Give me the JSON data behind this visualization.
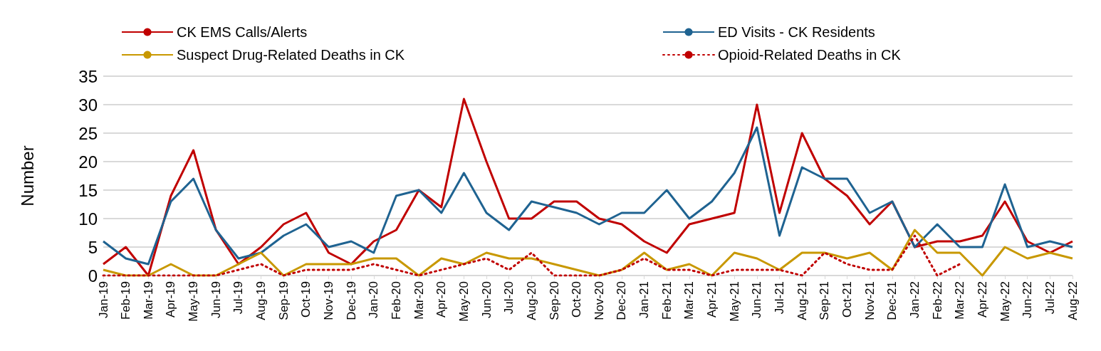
{
  "chart_data": {
    "type": "line",
    "ylabel": "Number",
    "categories": [
      "Jan-19",
      "Feb-19",
      "Mar-19",
      "Apr-19",
      "May-19",
      "Jun-19",
      "Jul-19",
      "Aug-19",
      "Sep-19",
      "Oct-19",
      "Nov-19",
      "Dec-19",
      "Jan-20",
      "Feb-20",
      "Mar-20",
      "Apr-20",
      "May-20",
      "Jun-20",
      "Jul-20",
      "Aug-20",
      "Sep-20",
      "Oct-20",
      "Nov-20",
      "Dec-20",
      "Jan-21",
      "Feb-21",
      "Mar-21",
      "Apr-21",
      "May-21",
      "Jun-21",
      "Jul-21",
      "Aug-21",
      "Sep-21",
      "Oct-21",
      "Nov-21",
      "Dec-21",
      "Jan-22",
      "Feb-22",
      "Mar-22",
      "Apr-22",
      "May-22",
      "Jun-22",
      "Jul-22",
      "Aug-22"
    ],
    "series": [
      {
        "name": "CK EMS Calls/Alerts",
        "color": "#c00000",
        "line_style": "solid",
        "values": [
          2,
          5,
          0,
          14,
          22,
          8,
          2,
          5,
          9,
          11,
          4,
          2,
          6,
          8,
          15,
          12,
          31,
          20,
          10,
          10,
          13,
          13,
          10,
          9,
          6,
          4,
          9,
          10,
          11,
          30,
          11,
          25,
          17,
          14,
          9,
          13,
          5,
          6,
          6,
          7,
          13,
          6,
          4,
          6
        ]
      },
      {
        "name": "ED Visits - CK Residents",
        "color": "#1f6391",
        "line_style": "solid",
        "values": [
          6,
          3,
          2,
          13,
          17,
          8,
          3,
          4,
          7,
          9,
          5,
          6,
          4,
          14,
          15,
          11,
          18,
          11,
          8,
          13,
          12,
          11,
          9,
          11,
          11,
          15,
          10,
          13,
          18,
          26,
          7,
          19,
          17,
          17,
          11,
          13,
          5,
          9,
          5,
          5,
          16,
          5,
          6,
          5
        ]
      },
      {
        "name": "Suspect Drug-Related Deaths in CK",
        "color": "#c89800",
        "line_style": "solid",
        "values": [
          1,
          0,
          0,
          2,
          0,
          0,
          2,
          4,
          0,
          2,
          2,
          2,
          3,
          3,
          0,
          3,
          2,
          4,
          3,
          3,
          2,
          1,
          0,
          1,
          4,
          1,
          2,
          0,
          4,
          3,
          1,
          4,
          4,
          3,
          4,
          1,
          8,
          4,
          4,
          0,
          5,
          3,
          4,
          3
        ]
      },
      {
        "name": "Opioid-Related Deaths in CK",
        "color": "#c00000",
        "line_style": "dotted",
        "values": [
          0,
          0,
          0,
          0,
          0,
          0,
          1,
          2,
          0,
          1,
          1,
          1,
          2,
          1,
          0,
          1,
          2,
          3,
          1,
          4,
          0,
          0,
          0,
          1,
          3,
          1,
          1,
          0,
          1,
          1,
          1,
          0,
          4,
          2,
          1,
          1,
          7,
          0,
          2,
          null,
          null,
          null,
          null,
          null
        ]
      }
    ],
    "ylim": [
      0,
      35
    ],
    "yticks": [
      0,
      5,
      10,
      15,
      20,
      25,
      30,
      35
    ],
    "grid": "y",
    "legend": "top",
    "marker": "none"
  }
}
